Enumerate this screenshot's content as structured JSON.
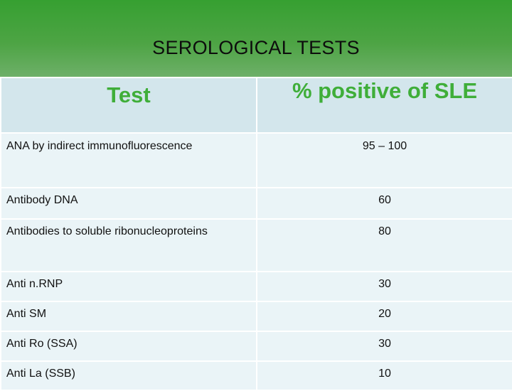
{
  "slide": {
    "title": "SEROLOGICAL TESTS"
  },
  "table": {
    "headers": [
      "Test",
      "% positive of SLE"
    ],
    "rows": [
      {
        "test": "ANA by indirect  immunofluorescence",
        "value": "95 – 100"
      },
      {
        "test": "Antibody DNA",
        "value": "60"
      },
      {
        "test": "Antibodies to soluble ribonucleoproteins",
        "value": "80"
      },
      {
        "test": "Anti n.RNP",
        "value": "30"
      },
      {
        "test": "Anti SM",
        "value": "20"
      },
      {
        "test": "Anti Ro (SSA)",
        "value": "30"
      },
      {
        "test": "Anti La (SSB)",
        "value": "10"
      }
    ]
  },
  "colors": {
    "banner_green": "#36a031",
    "header_text_green": "#3fae39",
    "header_bg": "#d3e6ec",
    "row_bg": "#eaf4f7"
  }
}
